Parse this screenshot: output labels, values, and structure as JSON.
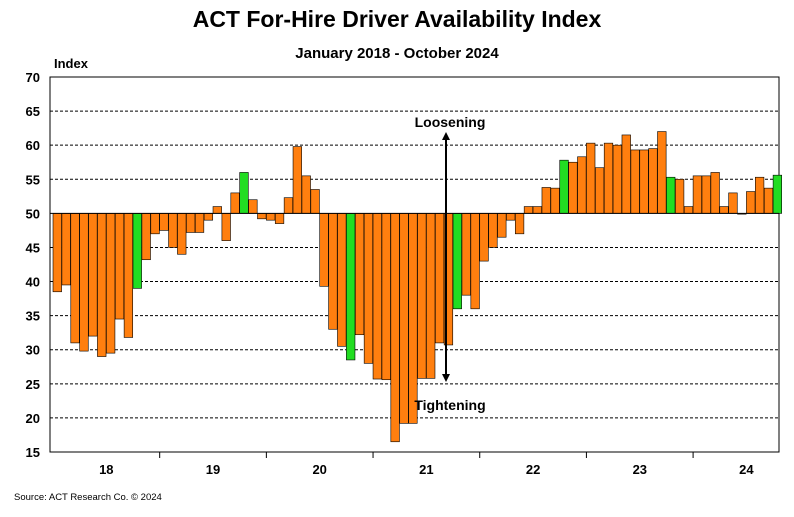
{
  "chart_data": {
    "type": "bar",
    "title": "ACT For-Hire Driver Availability Index",
    "subtitle": "January 2018 - October 2024",
    "ylabel": "Index",
    "xlabel": "",
    "ylim": [
      15,
      70
    ],
    "yticks": [
      "70",
      "65",
      "60",
      "55",
      "50",
      "45",
      "40",
      "35",
      "30",
      "25",
      "20",
      "15"
    ],
    "baseline": 50,
    "year_labels": [
      "18",
      "19",
      "20",
      "21",
      "22",
      "23",
      "24"
    ],
    "colors": {
      "default": "#ff7f0f",
      "highlight": "#22dd22",
      "outline": "#000000",
      "grid": "#000000"
    },
    "annotations": {
      "up": "Loosening",
      "down": "Tightening"
    },
    "series": [
      {
        "name": "Index",
        "values": [
          38.5,
          39.5,
          31.0,
          29.8,
          32.0,
          29.0,
          29.5,
          34.5,
          31.8,
          39.0,
          43.2,
          47.0,
          47.5,
          45.0,
          44.0,
          47.2,
          47.2,
          49.0,
          51.0,
          46.0,
          53.0,
          56.0,
          52.0,
          49.2,
          49.0,
          48.5,
          52.3,
          59.8,
          55.5,
          53.5,
          39.3,
          33.0,
          30.5,
          28.5,
          32.2,
          28.0,
          25.7,
          25.6,
          16.5,
          19.2,
          19.2,
          25.8,
          25.8,
          31.0,
          30.7,
          36.0,
          38.0,
          36.0,
          43.0,
          45.0,
          46.5,
          49.0,
          47.0,
          51.0,
          51.0,
          53.8,
          53.7,
          57.8,
          57.5,
          58.3,
          60.3,
          56.7,
          60.3,
          60.0,
          61.5,
          59.3,
          59.3,
          59.5,
          62.0,
          55.3,
          55.0,
          51.0,
          55.5,
          55.5,
          56.0,
          51.0,
          53.0,
          50.0,
          53.2,
          55.3,
          53.7,
          55.6
        ]
      }
    ],
    "highlight_indices": [
      9,
      21,
      33,
      45,
      57,
      69,
      81
    ]
  },
  "source": "Source: ACT Research Co. © 2024"
}
